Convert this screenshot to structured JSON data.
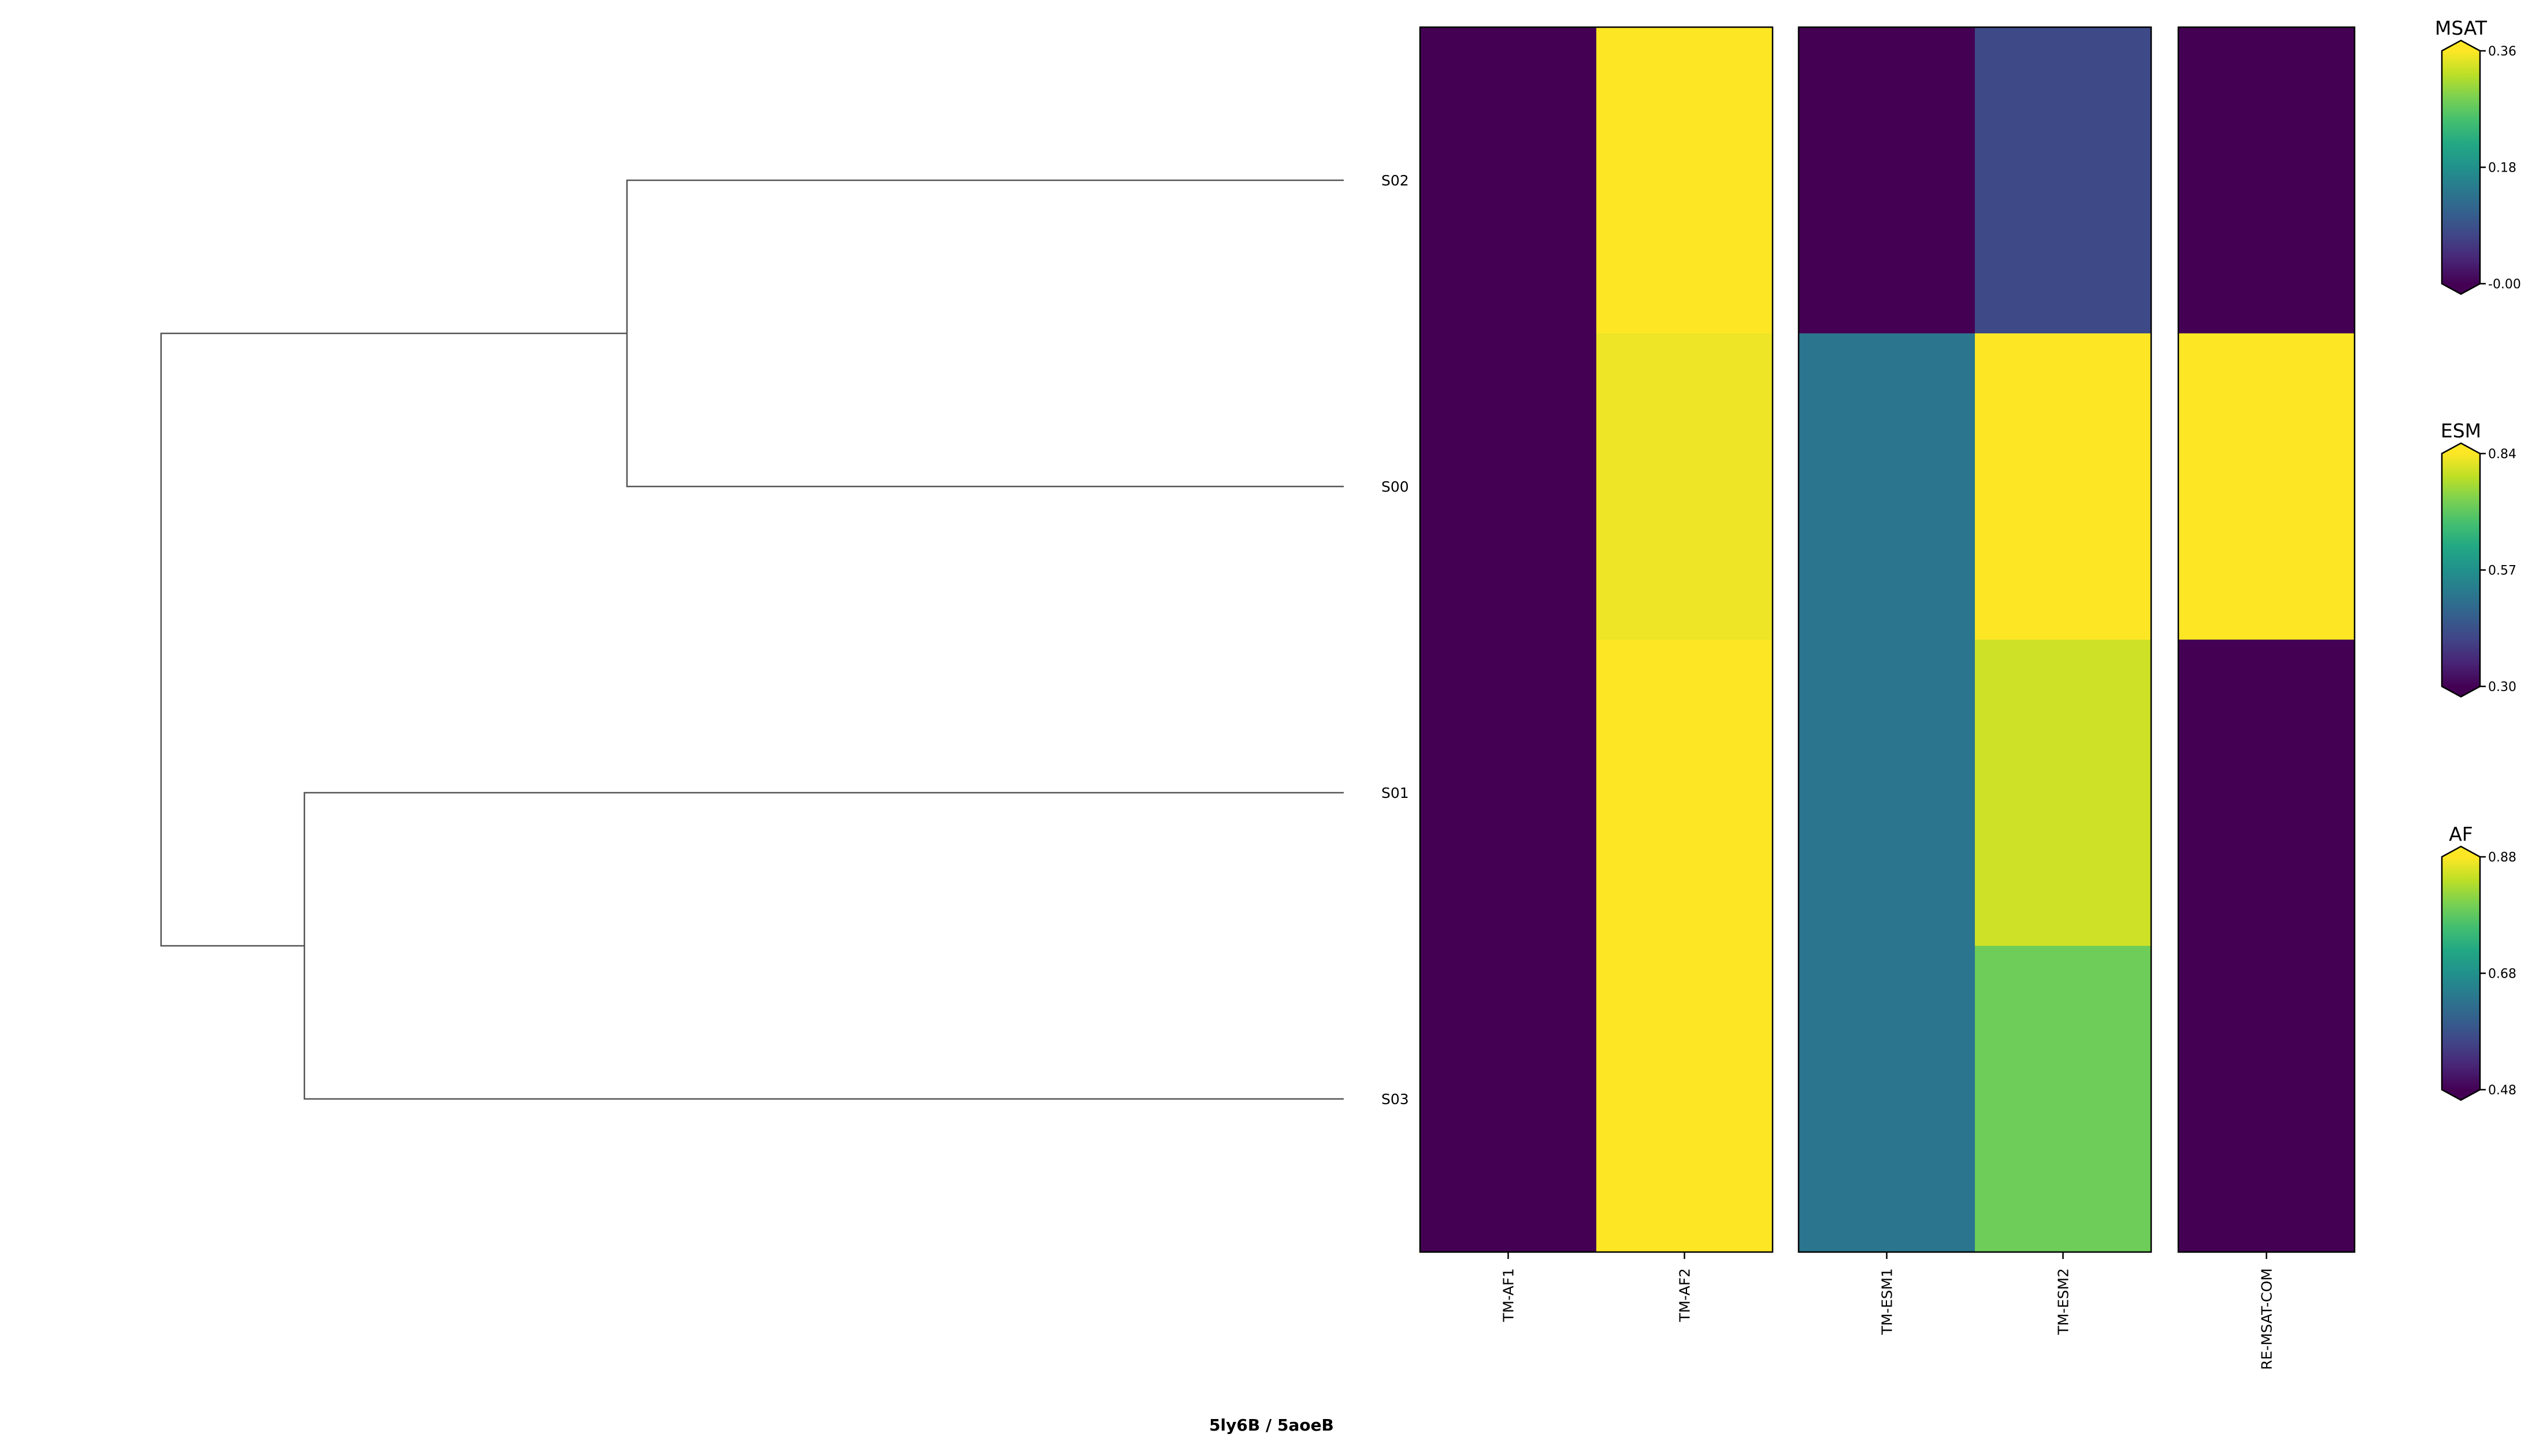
{
  "chart_data": {
    "type": "heatmap",
    "title": "5ly6B / 5aoeB",
    "rows": [
      "S02",
      "S00",
      "S01",
      "S03"
    ],
    "dendrogram": {
      "leaf_order": [
        "S02",
        "S00",
        "S01",
        "S03"
      ],
      "merges": [
        {
          "left": "S02",
          "right": "S00",
          "height": 0.6
        },
        {
          "left": "S01",
          "right": "S03",
          "height": 0.87
        },
        {
          "left": "S02+S00",
          "right": "S01+S03",
          "height": 0.99
        }
      ]
    },
    "panels": [
      {
        "colorbar": "AF",
        "columns": [
          "TM-AF1",
          "TM-AF2"
        ],
        "values": [
          [
            0.48,
            0.88
          ],
          [
            0.48,
            0.87
          ],
          [
            0.48,
            0.88
          ],
          [
            0.48,
            0.88
          ]
        ]
      },
      {
        "colorbar": "ESM",
        "columns": [
          "TM-ESM1",
          "TM-ESM2"
        ],
        "values": [
          [
            0.3,
            0.42
          ],
          [
            0.51,
            0.84
          ],
          [
            0.51,
            0.8
          ],
          [
            0.51,
            0.72
          ]
        ]
      },
      {
        "colorbar": "MSAT",
        "columns": [
          "RE-MSAT-COM"
        ],
        "values": [
          [
            0.0
          ],
          [
            0.36
          ],
          [
            0.0
          ],
          [
            0.0
          ]
        ]
      }
    ],
    "colorbars": [
      {
        "name": "MSAT",
        "min": 0.0,
        "max": 0.36,
        "ticks": [
          "-0.00",
          "0.18",
          "0.36"
        ],
        "tick_values": [
          0.0,
          0.18,
          0.36
        ],
        "colormap": "viridis",
        "extend": "both"
      },
      {
        "name": "ESM",
        "min": 0.3,
        "max": 0.84,
        "ticks": [
          "0.30",
          "0.57",
          "0.84"
        ],
        "tick_values": [
          0.3,
          0.57,
          0.84
        ],
        "colormap": "viridis",
        "extend": "both"
      },
      {
        "name": "AF",
        "min": 0.48,
        "max": 0.88,
        "ticks": [
          "0.48",
          "0.68",
          "0.88"
        ],
        "tick_values": [
          0.48,
          0.68,
          0.88
        ],
        "colormap": "viridis",
        "extend": "both"
      }
    ]
  }
}
